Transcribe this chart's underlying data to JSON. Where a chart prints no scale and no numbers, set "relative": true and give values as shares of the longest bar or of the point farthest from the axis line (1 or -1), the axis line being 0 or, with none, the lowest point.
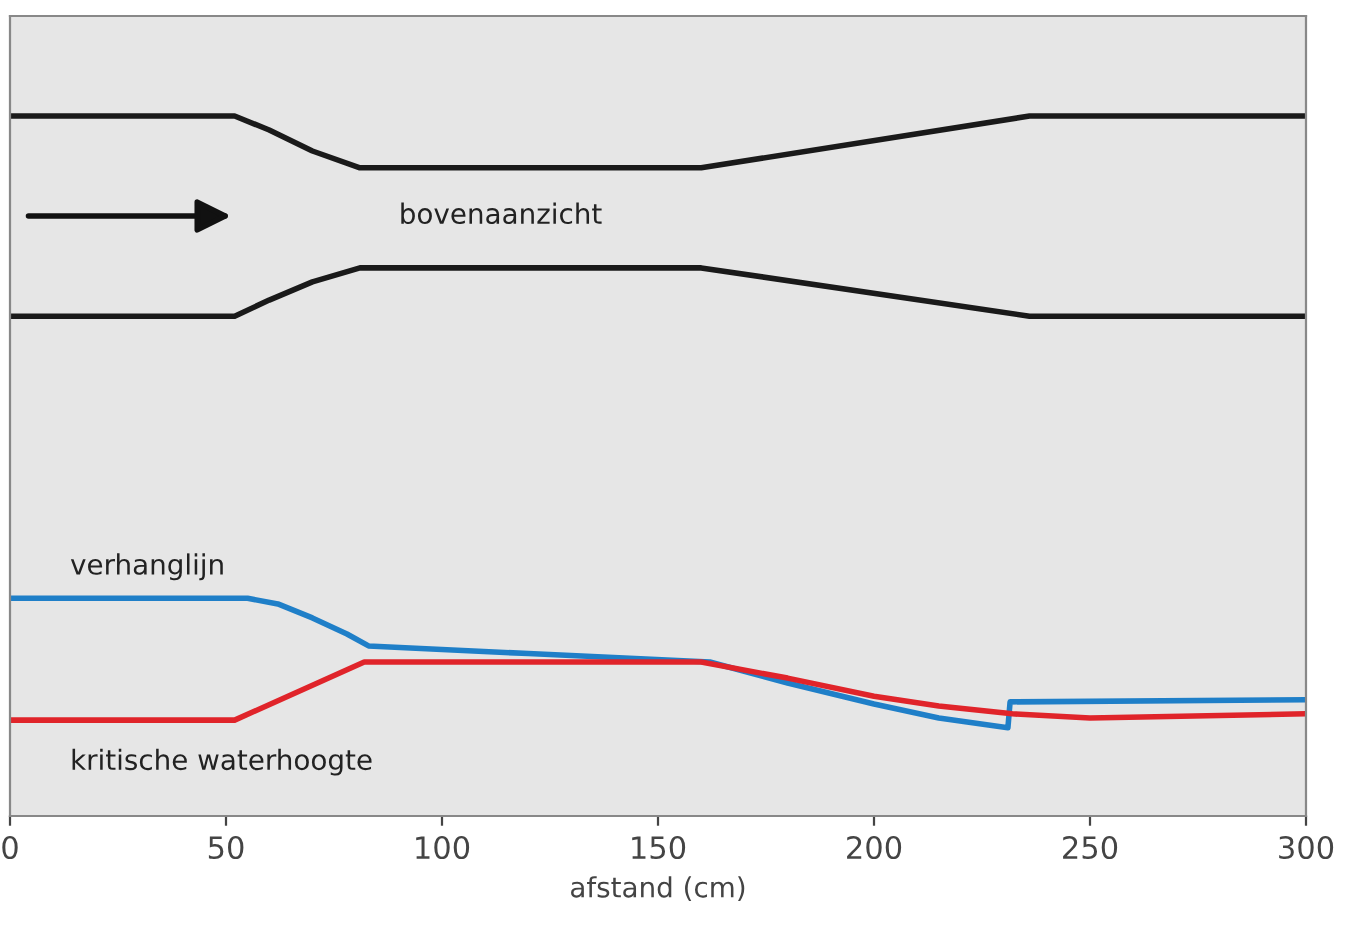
{
  "chart_data": {
    "type": "line",
    "relative": true,
    "xlabel": "afstand (cm)",
    "xlim": [
      0,
      300
    ],
    "xticks": [
      0,
      50,
      100,
      150,
      200,
      250,
      300
    ],
    "tick_labels": "x",
    "grid": false,
    "legend": false,
    "marker": "none",
    "line_style": "solid",
    "annotations": [
      "bovenaanzicht"
    ],
    "series": [
      {
        "color": "#1a1a1a",
        "x": [
          0,
          52,
          60,
          70,
          81,
          160,
          236,
          300
        ],
        "values": [
          1.0,
          1.0,
          0.98,
          0.95,
          0.926,
          0.926,
          1.0,
          1.0
        ]
      },
      {
        "color": "#1a1a1a",
        "x": [
          0,
          52,
          60,
          70,
          81,
          160,
          236,
          300
        ],
        "values": [
          0.714,
          0.714,
          0.737,
          0.763,
          0.783,
          0.783,
          0.714,
          0.714
        ]
      },
      {
        "name": "verhanglijn",
        "color": "#1f7fc8",
        "x": [
          0,
          55,
          62,
          70,
          78,
          83,
          120,
          162,
          180,
          200,
          215,
          231,
          231.5,
          300
        ],
        "values": [
          0.311,
          0.311,
          0.303,
          0.283,
          0.26,
          0.243,
          0.232,
          0.22,
          0.19,
          0.16,
          0.14,
          0.126,
          0.163,
          0.166
        ]
      },
      {
        "name": "kritische waterhoogte",
        "color": "#e0242a",
        "x": [
          0,
          52,
          82,
          160,
          180,
          200,
          215,
          232,
          250,
          300
        ],
        "values": [
          0.137,
          0.137,
          0.22,
          0.22,
          0.197,
          0.171,
          0.157,
          0.146,
          0.14,
          0.146
        ]
      }
    ]
  }
}
